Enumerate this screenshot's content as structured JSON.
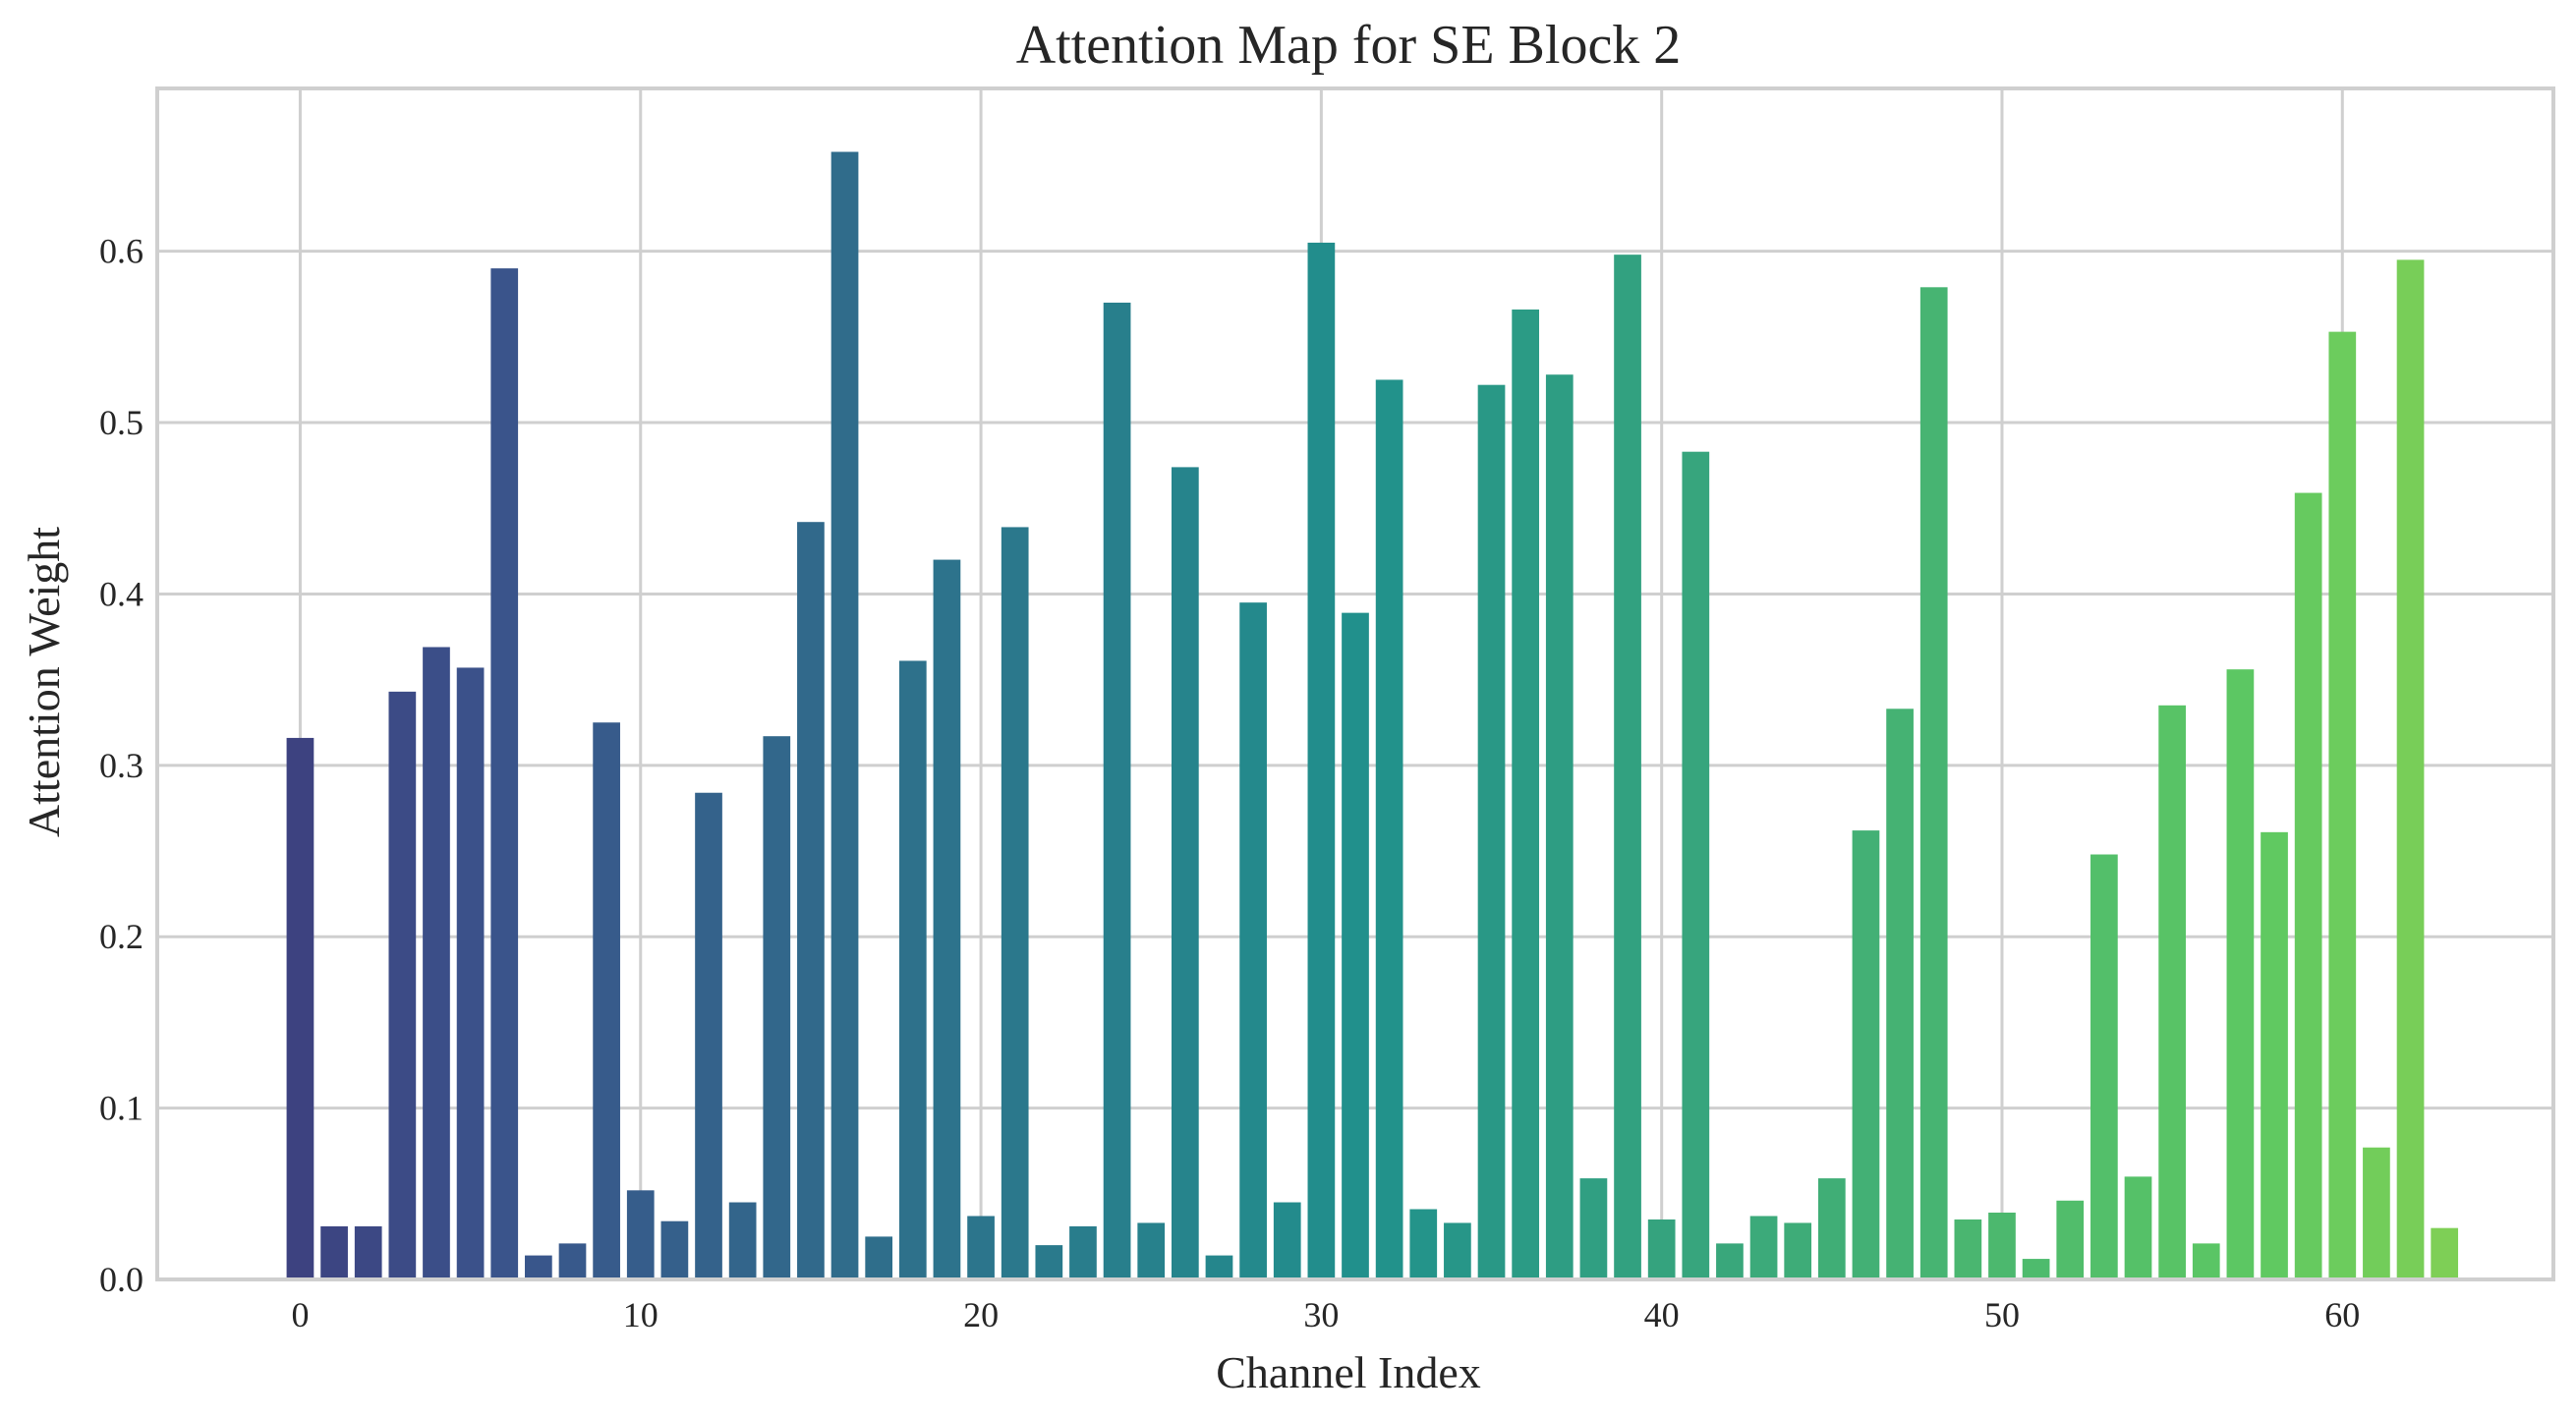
{
  "chart_data": {
    "type": "bar",
    "title": "Attention Map for SE Block 2",
    "xlabel": "Channel Index",
    "ylabel": "Attention Weight",
    "xlim": [
      -4.2,
      66.2
    ],
    "ylim": [
      0,
      0.695
    ],
    "x_ticks": [
      0,
      10,
      20,
      30,
      40,
      50,
      60
    ],
    "y_ticks": [
      0.0,
      0.1,
      0.2,
      0.3,
      0.4,
      0.5,
      0.6
    ],
    "y_tick_labels": [
      "0.0",
      "0.1",
      "0.2",
      "0.3",
      "0.4",
      "0.5",
      "0.6"
    ],
    "grid": true,
    "colormap": "viridis",
    "categories": [
      0,
      1,
      2,
      3,
      4,
      5,
      6,
      7,
      8,
      9,
      10,
      11,
      12,
      13,
      14,
      15,
      16,
      17,
      18,
      19,
      20,
      21,
      22,
      23,
      24,
      25,
      26,
      27,
      28,
      29,
      30,
      31,
      32,
      33,
      34,
      35,
      36,
      37,
      38,
      39,
      40,
      41,
      42,
      43,
      44,
      45,
      46,
      47,
      48,
      49,
      50,
      51,
      52,
      53,
      54,
      55,
      56,
      57,
      58,
      59,
      60,
      61,
      62,
      63
    ],
    "values": [
      0.316,
      0.031,
      0.031,
      0.343,
      0.369,
      0.357,
      0.59,
      0.014,
      0.021,
      0.325,
      0.052,
      0.034,
      0.284,
      0.045,
      0.317,
      0.442,
      0.658,
      0.025,
      0.361,
      0.42,
      0.037,
      0.439,
      0.02,
      0.031,
      0.57,
      0.033,
      0.474,
      0.014,
      0.395,
      0.045,
      0.605,
      0.389,
      0.525,
      0.041,
      0.033,
      0.522,
      0.566,
      0.528,
      0.059,
      0.598,
      0.035,
      0.483,
      0.021,
      0.037,
      0.033,
      0.059,
      0.262,
      0.333,
      0.579,
      0.035,
      0.039,
      0.012,
      0.046,
      0.248,
      0.06,
      0.335,
      0.021,
      0.356,
      0.261,
      0.459,
      0.553,
      0.077,
      0.595,
      0.03
    ]
  }
}
